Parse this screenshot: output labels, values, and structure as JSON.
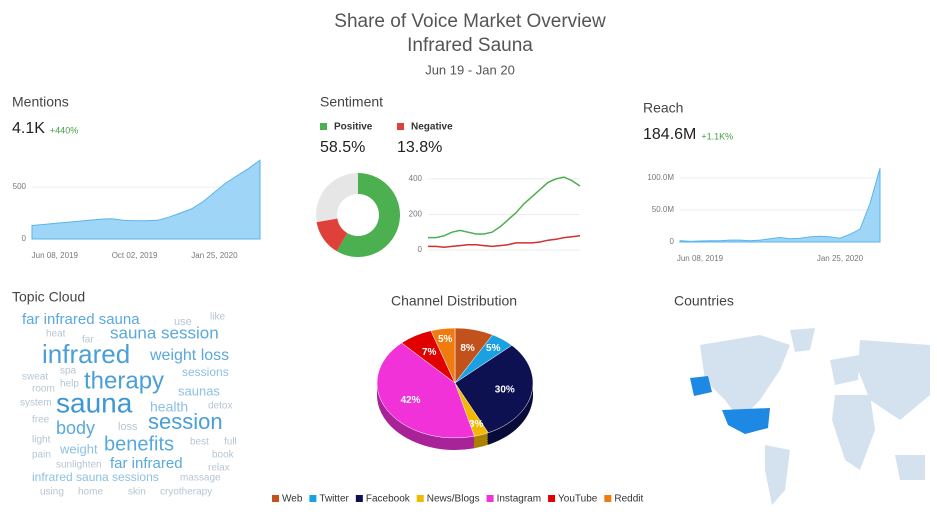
{
  "title": "Share of Voice Market Overview",
  "subtitle": "Infrared Sauna",
  "date_range": "Jun 19 - Jan 20",
  "chart_data": [
    {
      "type": "area",
      "title": "Mentions",
      "metric": "4.1K",
      "change": "+440%",
      "categories": [
        null,
        null,
        "Jun 08, 2019",
        null,
        null,
        null,
        null,
        null,
        null,
        "Oct 02, 2019",
        null,
        null,
        null,
        null,
        null,
        null,
        "Jan 25, 2020",
        null,
        null,
        null,
        null
      ],
      "values": [
        130,
        140,
        150,
        160,
        170,
        180,
        190,
        195,
        180,
        175,
        175,
        180,
        210,
        250,
        290,
        360,
        450,
        540,
        610,
        680,
        760
      ],
      "color": "#9fd6f7",
      "ylim": [
        0,
        800
      ],
      "yticks": [
        0,
        500
      ],
      "grid": true
    },
    {
      "type": "donut",
      "title": "Sentiment",
      "categories": [
        "Positive",
        "Negative",
        null
      ],
      "values": [
        58.5,
        13.8,
        27.7
      ],
      "value_labels": [
        "58.5%",
        "13.8%",
        null
      ],
      "colors": [
        "#4caf50",
        "#e0403a",
        "#e6e6e6"
      ]
    },
    {
      "type": "line",
      "categories": [
        null,
        null,
        null,
        null,
        null,
        null,
        null,
        null,
        null,
        null,
        null,
        null,
        null,
        null,
        null,
        null,
        null,
        null,
        null,
        null
      ],
      "series": [
        {
          "name": "Positive",
          "color": "#4caf50",
          "values": [
            70,
            70,
            80,
            100,
            110,
            100,
            90,
            90,
            100,
            130,
            170,
            210,
            260,
            300,
            340,
            380,
            400,
            410,
            390,
            360
          ]
        },
        {
          "name": "Negative",
          "color": "#d32f2f",
          "values": [
            20,
            20,
            15,
            20,
            25,
            30,
            30,
            25,
            20,
            25,
            30,
            40,
            40,
            40,
            45,
            55,
            60,
            70,
            75,
            80
          ]
        }
      ],
      "ylim": [
        0,
        450
      ],
      "yticks": [
        0,
        200,
        400
      ],
      "grid": true
    },
    {
      "type": "area",
      "title": "Reach",
      "metric": "184.6M",
      "change": "+1.1K%",
      "categories": [
        null,
        null,
        "Jun 08, 2019",
        null,
        null,
        null,
        null,
        null,
        null,
        null,
        null,
        null,
        null,
        null,
        null,
        null,
        "Jan 25, 2020",
        null,
        null,
        null,
        null
      ],
      "values": [
        2000000,
        1000000,
        1500000,
        2000000,
        2000000,
        3000000,
        3000000,
        2000000,
        3000000,
        5000000,
        7000000,
        5000000,
        6000000,
        8000000,
        9000000,
        8000000,
        6000000,
        12000000,
        20000000,
        60000000,
        115000000
      ],
      "color": "#9fd6f7",
      "ylim": [
        0,
        120000000
      ],
      "yticks": [
        0,
        {
          "value": 50000000,
          "label": "50.0M"
        },
        {
          "value": 100000000,
          "label": "100.0M"
        }
      ],
      "grid": true
    },
    {
      "type": "pie",
      "title": "Channel Distribution",
      "categories": [
        "Web",
        "Twitter",
        "Facebook",
        "News/Blogs",
        "Instagram",
        "YouTube",
        "Reddit"
      ],
      "values": [
        8,
        5,
        30,
        3,
        42,
        7,
        5
      ],
      "value_labels": [
        "8%",
        "5%",
        "30%",
        "3%",
        "42%",
        "7%",
        "5%"
      ],
      "colors": [
        "#c2521c",
        "#1ba1e2",
        "#0d1152",
        "#f5b800",
        "#f032d8",
        "#e00000",
        "#f07c10"
      ]
    }
  ],
  "topic_cloud": {
    "title": "Topic Cloud",
    "words": [
      "far infrared sauna",
      "like",
      "use",
      "sauna session",
      "heat",
      "far",
      "infrared",
      "weight loss",
      "sweat",
      "spa",
      "sessions",
      "therapy",
      "room",
      "help",
      "saunas",
      "system",
      "sauna",
      "health",
      "detox",
      "free",
      "session",
      "body",
      "light",
      "loss",
      "benefits",
      "best",
      "full",
      "pain",
      "weight",
      "book",
      "sunlighten",
      "far infrared",
      "relax",
      "infrared sauna sessions",
      "massage",
      "using",
      "home",
      "skin",
      "cryotherapy"
    ]
  },
  "countries": {
    "title": "Countries"
  }
}
